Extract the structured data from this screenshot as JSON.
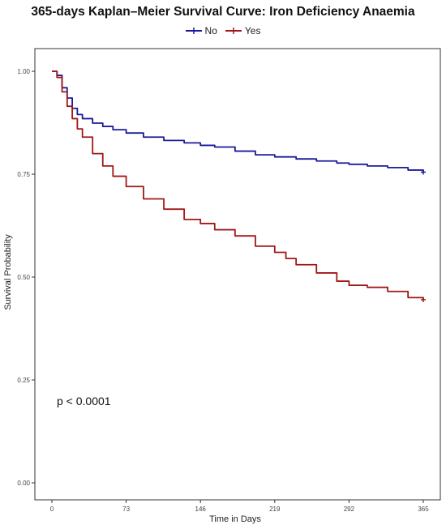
{
  "chart_data": {
    "type": "line",
    "title": "365-days Kaplan–Meier Survival Curve: Iron Deficiency Anaemia",
    "xlabel": "Time in Days",
    "ylabel": "Survival Probability",
    "xlim": [
      0,
      365
    ],
    "ylim": [
      0,
      1
    ],
    "x_ticks": [
      0,
      73,
      146,
      219,
      292,
      365
    ],
    "x_tick_labels": [
      "0",
      "73",
      "146",
      "219",
      "292",
      "365"
    ],
    "y_ticks": [
      0,
      0.25,
      0.5,
      0.75,
      1.0
    ],
    "y_tick_labels": [
      "0.00",
      "0.25",
      "0.50",
      "0.75",
      "1.00"
    ],
    "grid": false,
    "legend_position": "top",
    "annotation": "p < 0.0001",
    "series": [
      {
        "name": "No",
        "color": "#1a1a9a",
        "x": [
          0,
          5,
          10,
          15,
          20,
          25,
          30,
          40,
          50,
          60,
          73,
          90,
          110,
          130,
          146,
          160,
          180,
          200,
          219,
          240,
          260,
          280,
          292,
          310,
          330,
          350,
          365
        ],
        "y": [
          1.0,
          0.99,
          0.96,
          0.935,
          0.91,
          0.895,
          0.885,
          0.874,
          0.866,
          0.858,
          0.85,
          0.84,
          0.832,
          0.826,
          0.82,
          0.816,
          0.806,
          0.797,
          0.792,
          0.787,
          0.782,
          0.777,
          0.774,
          0.77,
          0.766,
          0.76,
          0.755
        ]
      },
      {
        "name": "Yes",
        "color": "#a01818",
        "x": [
          0,
          5,
          10,
          15,
          20,
          25,
          30,
          40,
          50,
          60,
          73,
          90,
          110,
          130,
          146,
          160,
          180,
          200,
          219,
          230,
          240,
          260,
          280,
          292,
          310,
          330,
          350,
          365
        ],
        "y": [
          1.0,
          0.985,
          0.95,
          0.915,
          0.885,
          0.86,
          0.84,
          0.8,
          0.77,
          0.745,
          0.72,
          0.69,
          0.665,
          0.64,
          0.63,
          0.615,
          0.6,
          0.575,
          0.56,
          0.545,
          0.53,
          0.51,
          0.49,
          0.48,
          0.475,
          0.465,
          0.45,
          0.445
        ]
      }
    ]
  }
}
